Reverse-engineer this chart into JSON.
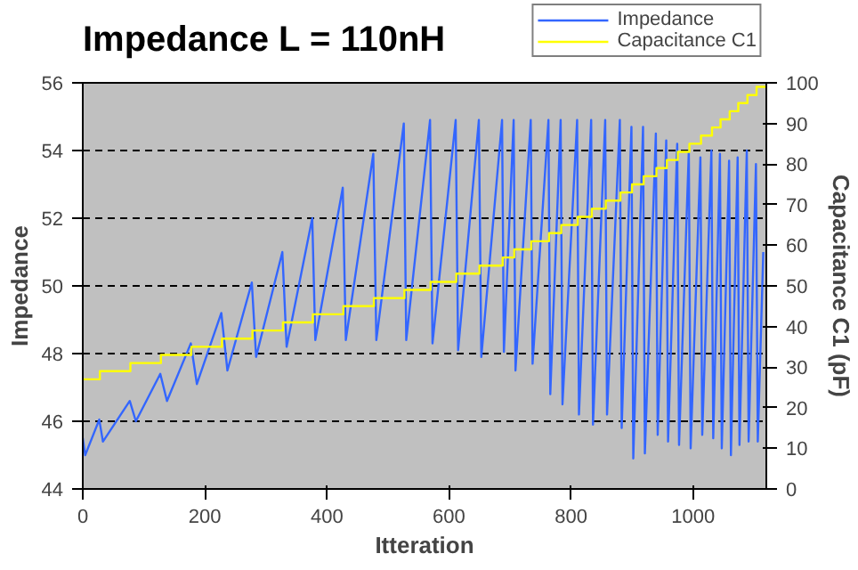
{
  "chart_data": {
    "type": "line",
    "title": "Impedance  L = 110nH",
    "xlabel": "Itteration",
    "ylabel": "Impedance",
    "y2label": "Capacitance C1 (pF)",
    "xlim": [
      0,
      1120
    ],
    "xticks": [
      0,
      200,
      400,
      600,
      800,
      1000
    ],
    "ylim": [
      44,
      56
    ],
    "yticks": [
      44,
      46,
      48,
      50,
      52,
      54,
      56
    ],
    "y2lim": [
      0,
      100
    ],
    "y2ticks": [
      0,
      10,
      20,
      30,
      40,
      50,
      60,
      70,
      80,
      90,
      100
    ],
    "grid": "y",
    "legend": "top right",
    "line_style": "solid",
    "marker": "none",
    "series": [
      {
        "name": "Impedance",
        "color": "#3366ff",
        "x": [
          0,
          4,
          27,
          33,
          77,
          87,
          127,
          138,
          177,
          187,
          227,
          237,
          277,
          284,
          327,
          334,
          376,
          381,
          426,
          431,
          476,
          481,
          526,
          530,
          569,
          573,
          611,
          615,
          649,
          653,
          687,
          690,
          706,
          709,
          734,
          737,
          763,
          766,
          783,
          786,
          810,
          813,
          833,
          836,
          856,
          859,
          880,
          883,
          899,
          902,
          918,
          921,
          939,
          942,
          956,
          959,
          974,
          977,
          993,
          996,
          1012,
          1015,
          1030,
          1033,
          1044,
          1047,
          1059,
          1062,
          1073,
          1076,
          1088,
          1091,
          1103,
          1106,
          1115
        ],
        "values": [
          45.5,
          45.0,
          46.05,
          45.4,
          46.6,
          46.0,
          47.4,
          46.6,
          48.3,
          47.1,
          49.2,
          47.5,
          50.1,
          47.9,
          51.0,
          48.2,
          52.0,
          48.4,
          52.9,
          48.4,
          53.9,
          48.4,
          54.8,
          48.4,
          54.9,
          48.3,
          54.9,
          48.1,
          54.9,
          47.9,
          54.9,
          48.05,
          54.9,
          47.5,
          54.9,
          47.7,
          54.9,
          46.8,
          54.9,
          46.5,
          54.9,
          46.2,
          54.9,
          45.9,
          54.9,
          46.2,
          54.9,
          45.8,
          54.7,
          44.9,
          54.7,
          45.05,
          54.5,
          45.6,
          54.3,
          45.4,
          54.2,
          45.3,
          54.0,
          45.2,
          53.8,
          45.6,
          54.0,
          45.5,
          53.9,
          45.2,
          53.7,
          45.0,
          53.8,
          45.3,
          54.0,
          45.4,
          53.6,
          45.4,
          51.0
        ]
      },
      {
        "name": "Capacitance C1",
        "type": "step",
        "axis": "y2",
        "color": "#ffff00",
        "x": [
          0,
          28,
          78,
          128,
          178,
          228,
          278,
          328,
          377,
          427,
          477,
          527,
          570,
          612,
          650,
          688,
          707,
          735,
          764,
          784,
          811,
          834,
          857,
          881,
          900,
          919,
          940,
          957,
          975,
          994,
          1013,
          1031,
          1045,
          1060,
          1074,
          1089,
          1104,
          1120
        ],
        "values": [
          27,
          29,
          31,
          33,
          35,
          37,
          39,
          41,
          43,
          45,
          47,
          49,
          51,
          53,
          55,
          57,
          59,
          61,
          63,
          65,
          67,
          69,
          71,
          73,
          75,
          77,
          79,
          81,
          83,
          85,
          87,
          89,
          91,
          93,
          95,
          97,
          99,
          99
        ]
      }
    ]
  }
}
